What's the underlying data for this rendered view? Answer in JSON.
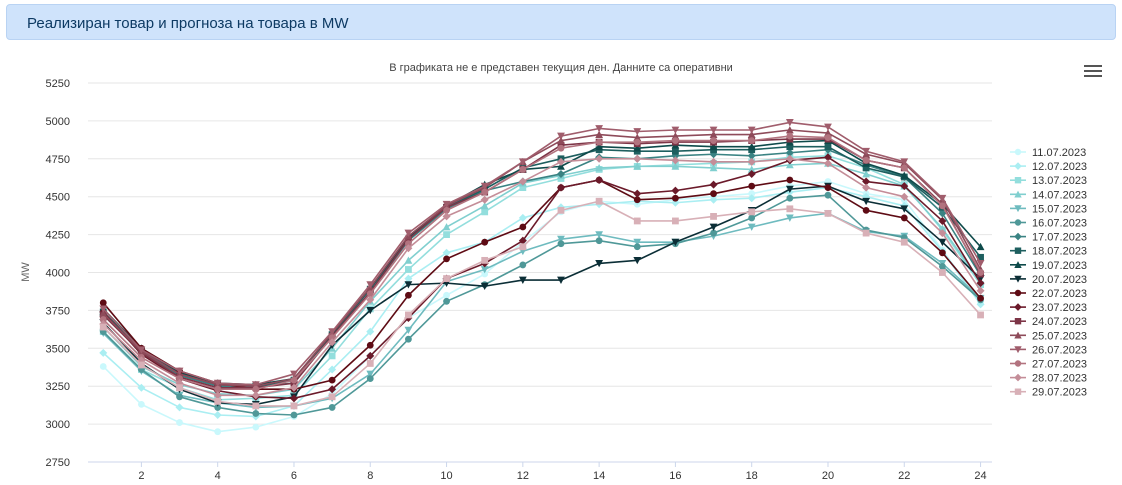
{
  "header": {
    "title": "Реализиран товар и прогноза на товара в MW"
  },
  "chart_data": {
    "type": "line",
    "subtitle": "В графиката не е представен текущия ден. Данните са оперативни",
    "ylabel": "MW",
    "xlabel": "",
    "xlim": [
      0.6,
      24.3
    ],
    "ylim": [
      2750,
      5250
    ],
    "yticks": [
      2750,
      3000,
      3250,
      3500,
      3750,
      4000,
      4250,
      4500,
      4750,
      5000,
      5250
    ],
    "xticks": [
      2,
      4,
      6,
      8,
      10,
      12,
      14,
      16,
      18,
      20,
      22,
      24
    ],
    "grid": true,
    "legend": "right",
    "x": [
      1,
      2,
      3,
      4,
      5,
      6,
      7,
      8,
      9,
      10,
      11,
      12,
      13,
      14,
      15,
      16,
      17,
      18,
      19,
      20,
      21,
      22,
      23,
      24
    ],
    "series": [
      {
        "name": "11.07.2023",
        "color": "#c9f8fc",
        "marker": "circle",
        "values": [
          3380,
          3130,
          3010,
          2950,
          2980,
          3050,
          3200,
          3450,
          3700,
          3850,
          3990,
          4200,
          4400,
          4470,
          4450,
          4480,
          4500,
          4520,
          4570,
          4600,
          4520,
          4480,
          4150,
          3800
        ]
      },
      {
        "name": "12.07.2023",
        "color": "#aaeef2",
        "marker": "diamond",
        "values": [
          3470,
          3240,
          3110,
          3060,
          3050,
          3120,
          3360,
          3610,
          3960,
          4130,
          4200,
          4360,
          4430,
          4450,
          4470,
          4460,
          4480,
          4490,
          4530,
          4560,
          4500,
          4440,
          4140,
          3790
        ]
      },
      {
        "name": "13.07.2023",
        "color": "#93dedd",
        "marker": "square",
        "values": [
          3610,
          3360,
          3240,
          3160,
          3170,
          3190,
          3450,
          3760,
          4020,
          4250,
          4400,
          4560,
          4620,
          4680,
          4700,
          4710,
          4720,
          4730,
          4760,
          4770,
          4690,
          4580,
          4280,
          3920
        ]
      },
      {
        "name": "14.07.2023",
        "color": "#80cfcf",
        "marker": "triangle-up",
        "values": [
          3640,
          3380,
          3260,
          3200,
          3190,
          3230,
          3500,
          3810,
          4080,
          4300,
          4440,
          4590,
          4640,
          4690,
          4700,
          4700,
          4690,
          4680,
          4710,
          4720,
          4650,
          4570,
          4290,
          3940
        ]
      },
      {
        "name": "15.07.2023",
        "color": "#6ebbbf",
        "marker": "triangle-down",
        "values": [
          3600,
          3350,
          3190,
          3140,
          3110,
          3120,
          3170,
          3330,
          3620,
          3940,
          4020,
          4140,
          4220,
          4250,
          4200,
          4200,
          4240,
          4300,
          4360,
          4390,
          4270,
          4240,
          4060,
          3830
        ]
      },
      {
        "name": "16.07.2023",
        "color": "#4f9898",
        "marker": "circle",
        "values": [
          3610,
          3360,
          3180,
          3110,
          3070,
          3060,
          3110,
          3300,
          3560,
          3810,
          3920,
          4050,
          4190,
          4210,
          4170,
          4190,
          4260,
          4360,
          4490,
          4510,
          4280,
          4230,
          4040,
          3820
        ]
      },
      {
        "name": "17.07.2023",
        "color": "#3a8383",
        "marker": "diamond",
        "values": [
          3720,
          3480,
          3320,
          3250,
          3250,
          3270,
          3580,
          3870,
          4210,
          4420,
          4540,
          4600,
          4650,
          4760,
          4750,
          4770,
          4780,
          4770,
          4790,
          4810,
          4710,
          4630,
          4390,
          3980
        ]
      },
      {
        "name": "18.07.2023",
        "color": "#1e5f5f",
        "marker": "square",
        "values": [
          3740,
          3490,
          3330,
          3260,
          3250,
          3290,
          3590,
          3890,
          4220,
          4430,
          4550,
          4690,
          4750,
          4810,
          4800,
          4800,
          4810,
          4810,
          4830,
          4830,
          4690,
          4630,
          4430,
          4100
        ]
      },
      {
        "name": "19.07.2023",
        "color": "#0e4a4a",
        "marker": "triangle-up",
        "values": [
          3760,
          3500,
          3340,
          3270,
          3260,
          3300,
          3600,
          3900,
          4230,
          4440,
          4580,
          4680,
          4700,
          4830,
          4820,
          4840,
          4830,
          4830,
          4860,
          4870,
          4720,
          4640,
          4450,
          4170
        ]
      },
      {
        "name": "20.07.2023",
        "color": "#0b2e36",
        "marker": "triangle-down",
        "values": [
          3670,
          3400,
          3230,
          3140,
          3130,
          3180,
          3520,
          3750,
          3920,
          3930,
          3910,
          3950,
          3950,
          4060,
          4080,
          4200,
          4300,
          4410,
          4550,
          4570,
          4470,
          4420,
          4200,
          3960
        ]
      },
      {
        "name": "22.07.2023",
        "color": "#5e0b14",
        "marker": "circle",
        "values": [
          3800,
          3500,
          3350,
          3270,
          3230,
          3230,
          3290,
          3520,
          3850,
          4090,
          4200,
          4300,
          4560,
          4610,
          4480,
          4490,
          4520,
          4570,
          4610,
          4560,
          4410,
          4360,
          4130,
          3830
        ]
      },
      {
        "name": "23.07.2023",
        "color": "#6b1a2a",
        "marker": "diamond",
        "values": [
          3740,
          3460,
          3300,
          3220,
          3180,
          3170,
          3230,
          3450,
          3700,
          3960,
          4060,
          4210,
          4560,
          4610,
          4520,
          4540,
          4580,
          4650,
          4740,
          4760,
          4600,
          4570,
          4340,
          3930
        ]
      },
      {
        "name": "24.07.2023",
        "color": "#7d3547",
        "marker": "square",
        "values": [
          3720,
          3470,
          3310,
          3240,
          3240,
          3270,
          3580,
          3870,
          4220,
          4430,
          4530,
          4680,
          4840,
          4860,
          4850,
          4860,
          4860,
          4870,
          4880,
          4880,
          4740,
          4690,
          4450,
          3990
        ]
      },
      {
        "name": "25.07.2023",
        "color": "#8e4b5a",
        "marker": "triangle-up",
        "values": [
          3730,
          3480,
          3330,
          3260,
          3250,
          3300,
          3600,
          3900,
          4240,
          4440,
          4560,
          4730,
          4870,
          4910,
          4890,
          4900,
          4910,
          4910,
          4940,
          4920,
          4780,
          4720,
          4480,
          4020
        ]
      },
      {
        "name": "26.07.2023",
        "color": "#a05d6c",
        "marker": "triangle-down",
        "values": [
          3760,
          3490,
          3350,
          3270,
          3260,
          3330,
          3610,
          3920,
          4260,
          4450,
          4570,
          4730,
          4900,
          4950,
          4930,
          4940,
          4940,
          4940,
          4990,
          4960,
          4800,
          4730,
          4490,
          4060
        ]
      },
      {
        "name": "27.07.2023",
        "color": "#b2737f",
        "marker": "circle",
        "values": [
          3690,
          3440,
          3300,
          3230,
          3230,
          3290,
          3570,
          3860,
          4190,
          4410,
          4530,
          4680,
          4820,
          4860,
          4860,
          4870,
          4870,
          4870,
          4900,
          4890,
          4740,
          4690,
          4440,
          4000
        ]
      },
      {
        "name": "28.07.2023",
        "color": "#c48d98",
        "marker": "diamond",
        "values": [
          3660,
          3420,
          3270,
          3190,
          3190,
          3240,
          3540,
          3820,
          4160,
          4370,
          4480,
          4600,
          4730,
          4750,
          4750,
          4740,
          4730,
          4730,
          4750,
          4720,
          4560,
          4500,
          4260,
          3880
        ]
      },
      {
        "name": "29.07.2023",
        "color": "#d8b0b7",
        "marker": "square",
        "values": [
          3640,
          3390,
          3240,
          3150,
          3120,
          3120,
          3180,
          3400,
          3720,
          3960,
          4080,
          4170,
          4410,
          4470,
          4340,
          4340,
          4370,
          4400,
          4420,
          4390,
          4260,
          4200,
          4000,
          3720
        ]
      }
    ]
  }
}
